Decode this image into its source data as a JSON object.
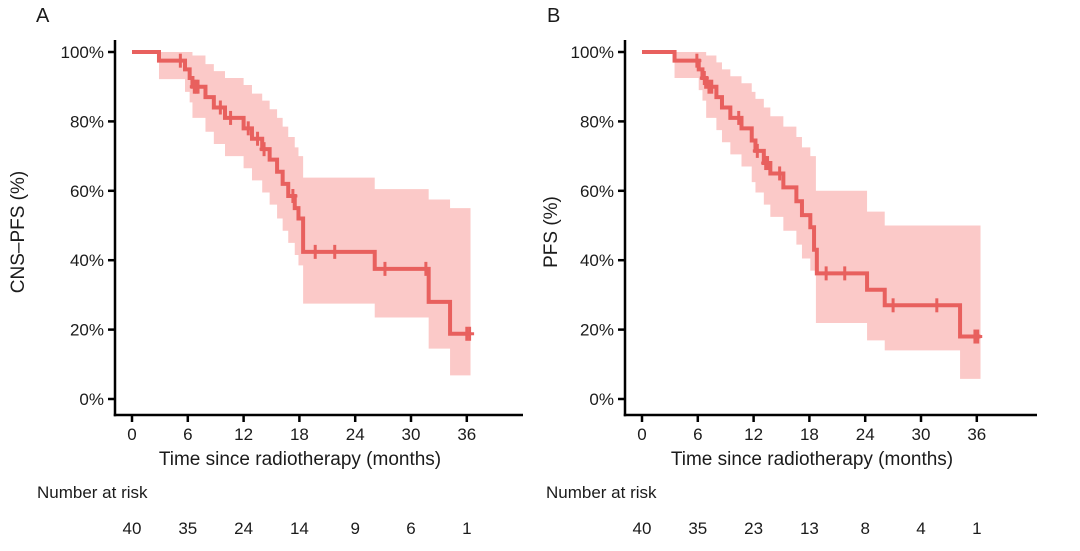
{
  "figure": {
    "background": "#ffffff"
  },
  "chart_data": [
    {
      "type": "line",
      "subtype": "kaplan-meier-step",
      "panel_label": "A",
      "ylabel": "CNS–PFS (%)",
      "xlabel": "Time since radiotherapy (months)",
      "xlim": [
        0,
        36
      ],
      "ylim": [
        0,
        100
      ],
      "grid": "off",
      "legend": "none",
      "xticks": [
        0,
        6,
        12,
        18,
        24,
        30,
        36
      ],
      "yticks": [
        {
          "value": 0,
          "label": "0%"
        },
        {
          "value": 20,
          "label": "20%"
        },
        {
          "value": 40,
          "label": "40%"
        },
        {
          "value": 60,
          "label": "60%"
        },
        {
          "value": 80,
          "label": "80%"
        },
        {
          "value": 100,
          "label": "100%"
        }
      ],
      "t_end": 36.4,
      "steps": [
        [
          0,
          100
        ],
        [
          2.9,
          97.5
        ],
        [
          5.7,
          95
        ],
        [
          6.2,
          92.5
        ],
        [
          6.5,
          90
        ],
        [
          7.9,
          87
        ],
        [
          8.8,
          84
        ],
        [
          10,
          81
        ],
        [
          12,
          78
        ],
        [
          12.9,
          75
        ],
        [
          14,
          72
        ],
        [
          14.8,
          69
        ],
        [
          15.6,
          65.5
        ],
        [
          16.2,
          62
        ],
        [
          16.8,
          58.5
        ],
        [
          17.5,
          55
        ],
        [
          17.9,
          52
        ],
        [
          18.4,
          42.4
        ],
        [
          26.1,
          37.5
        ],
        [
          31.9,
          28
        ],
        [
          34.2,
          18.8
        ]
      ],
      "censors": [
        [
          5.2,
          97.5
        ],
        [
          6.7,
          90
        ],
        [
          6.9,
          90
        ],
        [
          7.1,
          90
        ],
        [
          9.5,
          84
        ],
        [
          10.6,
          81
        ],
        [
          12.5,
          78
        ],
        [
          13.5,
          75
        ],
        [
          14.2,
          72
        ],
        [
          17.3,
          58.5
        ],
        [
          19.7,
          42.4
        ],
        [
          21.8,
          42.4
        ],
        [
          27.2,
          37.5
        ],
        [
          31.6,
          37.5
        ],
        [
          36.0,
          18.8
        ],
        [
          36.3,
          18.8
        ]
      ],
      "band": [
        [
          2.9,
          92.2,
          100
        ],
        [
          5.7,
          88.5,
          100
        ],
        [
          6.2,
          85.5,
          100
        ],
        [
          6.5,
          81,
          99
        ],
        [
          7.9,
          77,
          96.5
        ],
        [
          8.8,
          73.5,
          94.5
        ],
        [
          10,
          70,
          92.5
        ],
        [
          12,
          66.5,
          90.5
        ],
        [
          12.9,
          63,
          88
        ],
        [
          14,
          59.5,
          86
        ],
        [
          14.8,
          56,
          83.5
        ],
        [
          15.6,
          52,
          81
        ],
        [
          16.2,
          48.5,
          78.5
        ],
        [
          16.8,
          45,
          75.5
        ],
        [
          17.5,
          41.5,
          72.5
        ],
        [
          17.9,
          38.5,
          70
        ],
        [
          18.4,
          27.5,
          63.8
        ],
        [
          26.1,
          23.5,
          60.5
        ],
        [
          31.9,
          14.5,
          57.5
        ],
        [
          34.2,
          6.8,
          55
        ]
      ],
      "risk": {
        "label": "Number at risk",
        "times": [
          0,
          6,
          12,
          18,
          24,
          30,
          36
        ],
        "counts": [
          "40",
          "35",
          "24",
          "14",
          "9",
          "6",
          "1"
        ]
      },
      "colors": {
        "line": "#e8605e",
        "band": "#fbc9c8",
        "axis": "#000000",
        "text": "#1b1b1b"
      }
    },
    {
      "type": "line",
      "subtype": "kaplan-meier-step",
      "panel_label": "B",
      "ylabel": "PFS (%)",
      "xlabel": "Time since radiotherapy (months)",
      "xlim": [
        0,
        36
      ],
      "ylim": [
        0,
        100
      ],
      "grid": "off",
      "legend": "none",
      "xticks": [
        0,
        6,
        12,
        18,
        24,
        30,
        36
      ],
      "yticks": [
        {
          "value": 0,
          "label": "0%"
        },
        {
          "value": 20,
          "label": "20%"
        },
        {
          "value": 40,
          "label": "40%"
        },
        {
          "value": 60,
          "label": "60%"
        },
        {
          "value": 80,
          "label": "80%"
        },
        {
          "value": 100,
          "label": "100%"
        }
      ],
      "t_end": 36.4,
      "steps": [
        [
          0,
          100
        ],
        [
          3.5,
          97.5
        ],
        [
          6.1,
          95
        ],
        [
          6.5,
          92.5
        ],
        [
          6.9,
          90
        ],
        [
          8,
          87
        ],
        [
          8.6,
          84
        ],
        [
          9.5,
          81
        ],
        [
          10.7,
          78
        ],
        [
          11.8,
          74.5
        ],
        [
          12.2,
          71.5
        ],
        [
          13.1,
          68
        ],
        [
          13.8,
          65
        ],
        [
          15.2,
          61
        ],
        [
          16.6,
          57
        ],
        [
          17.2,
          53
        ],
        [
          18.1,
          49.5
        ],
        [
          18.5,
          43
        ],
        [
          18.8,
          36.2
        ],
        [
          24.2,
          31.5
        ],
        [
          26.1,
          27
        ],
        [
          34.2,
          18
        ]
      ],
      "censors": [
        [
          5.9,
          97.5
        ],
        [
          6.7,
          92.5
        ],
        [
          7.2,
          90
        ],
        [
          7.5,
          90
        ],
        [
          10.4,
          81
        ],
        [
          12.4,
          71.5
        ],
        [
          13.3,
          68
        ],
        [
          13.5,
          68
        ],
        [
          14.8,
          65
        ],
        [
          19.8,
          36.2
        ],
        [
          21.8,
          36.2
        ],
        [
          27.0,
          27
        ],
        [
          31.7,
          27
        ],
        [
          35.8,
          18
        ],
        [
          36.1,
          18
        ]
      ],
      "band": [
        [
          3.5,
          92.5,
          100
        ],
        [
          6.1,
          89,
          100
        ],
        [
          6.5,
          86,
          100
        ],
        [
          6.9,
          81,
          99
        ],
        [
          8,
          77.5,
          97
        ],
        [
          8.6,
          74,
          95
        ],
        [
          9.5,
          70.5,
          93
        ],
        [
          10.7,
          67,
          91
        ],
        [
          11.8,
          62.5,
          88.5
        ],
        [
          12.2,
          59.5,
          86.5
        ],
        [
          13.1,
          56,
          84
        ],
        [
          13.8,
          52.5,
          81.5
        ],
        [
          15.2,
          48.5,
          78.5
        ],
        [
          16.6,
          44.5,
          75.5
        ],
        [
          17.2,
          40.5,
          72.5
        ],
        [
          18.1,
          37,
          70
        ],
        [
          18.7,
          21.9,
          60
        ],
        [
          24.2,
          16.9,
          54
        ],
        [
          26.1,
          14,
          50
        ],
        [
          34.2,
          5.8,
          50
        ]
      ],
      "risk": {
        "label": "Number at risk",
        "times": [
          0,
          6,
          12,
          18,
          24,
          30,
          36
        ],
        "counts": [
          "40",
          "35",
          "23",
          "13",
          "8",
          "4",
          "1"
        ]
      },
      "colors": {
        "line": "#e8605e",
        "band": "#fbc9c8",
        "axis": "#000000",
        "text": "#1b1b1b"
      }
    }
  ]
}
